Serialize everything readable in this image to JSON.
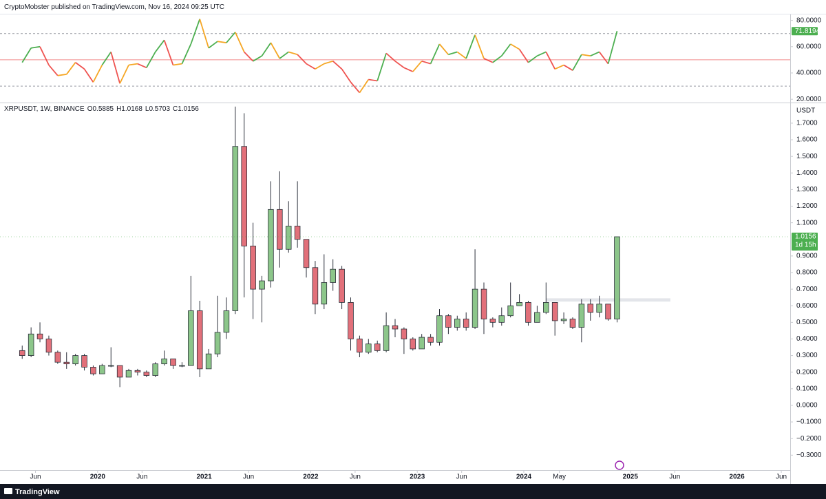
{
  "header": {
    "publisher": "CryptoMobster published on TradingView.com, Nov 16, 2024 09:25 UTC",
    "brand": "TradingView"
  },
  "chart_data": [
    {
      "type": "candlestick",
      "symbol": "XRPUSDT, 1W, BINANCE",
      "ohlc_legend": [
        "O0.5885",
        "H1.0168",
        "L0.5703",
        "C1.0156"
      ],
      "currency": "USDT",
      "countdown": "1d 15h",
      "up_color": "#8cc68a",
      "down_color": "#e2707a",
      "outline_color": "#2a2e39",
      "last_label_color": "#4caf50",
      "x": [
        "2019-04",
        "2019-05",
        "2019-06",
        "2019-07",
        "2019-08",
        "2019-09",
        "2019-10",
        "2019-11",
        "2019-12",
        "2020-01",
        "2020-02",
        "2020-03",
        "2020-04",
        "2020-05",
        "2020-06",
        "2020-07",
        "2020-08",
        "2020-09",
        "2020-10",
        "2020-11",
        "2020-12",
        "2021-01",
        "2021-02",
        "2021-03",
        "2021-04",
        "2021-05",
        "2021-06",
        "2021-07",
        "2021-08",
        "2021-09",
        "2021-10",
        "2021-11",
        "2021-12",
        "2022-01",
        "2022-02",
        "2022-03",
        "2022-04",
        "2022-05",
        "2022-06",
        "2022-07",
        "2022-08",
        "2022-09",
        "2022-10",
        "2022-11",
        "2022-12",
        "2023-01",
        "2023-02",
        "2023-03",
        "2023-04",
        "2023-05",
        "2023-06",
        "2023-07",
        "2023-08",
        "2023-09",
        "2023-10",
        "2023-11",
        "2023-12",
        "2024-01",
        "2024-02",
        "2024-03",
        "2024-04",
        "2024-05",
        "2024-06",
        "2024-07",
        "2024-08",
        "2024-09",
        "2024-10",
        "2024-11"
      ],
      "open": [
        0.33,
        0.3,
        0.43,
        0.4,
        0.32,
        0.26,
        0.25,
        0.3,
        0.23,
        0.19,
        0.24,
        0.24,
        0.17,
        0.21,
        0.2,
        0.18,
        0.25,
        0.28,
        0.24,
        0.24,
        0.57,
        0.22,
        0.31,
        0.44,
        0.57,
        1.56,
        0.96,
        0.7,
        0.75,
        1.18,
        0.94,
        1.08,
        1.0,
        0.83,
        0.61,
        0.74,
        0.82,
        0.62,
        0.4,
        0.32,
        0.37,
        0.33,
        0.48,
        0.46,
        0.4,
        0.34,
        0.41,
        0.38,
        0.54,
        0.47,
        0.52,
        0.47,
        0.7,
        0.52,
        0.5,
        0.54,
        0.6,
        0.62,
        0.5,
        0.56,
        0.62,
        0.51,
        0.52,
        0.47,
        0.61,
        0.56,
        0.61,
        0.52
      ],
      "high": [
        0.36,
        0.47,
        0.5,
        0.42,
        0.33,
        0.32,
        0.31,
        0.31,
        0.24,
        0.25,
        0.35,
        0.24,
        0.22,
        0.22,
        0.21,
        0.26,
        0.33,
        0.28,
        0.26,
        0.78,
        0.63,
        0.34,
        0.66,
        0.65,
        1.8,
        1.76,
        1.1,
        0.78,
        1.35,
        1.41,
        1.23,
        1.35,
        1.0,
        0.87,
        0.91,
        0.88,
        0.84,
        0.65,
        0.42,
        0.4,
        0.39,
        0.56,
        0.52,
        0.47,
        0.41,
        0.43,
        0.43,
        0.58,
        0.55,
        0.54,
        0.56,
        0.94,
        0.74,
        0.53,
        0.59,
        0.74,
        0.67,
        0.63,
        0.6,
        0.74,
        0.62,
        0.56,
        0.53,
        0.64,
        0.64,
        0.66,
        0.61,
        1.0168
      ],
      "low": [
        0.28,
        0.29,
        0.38,
        0.3,
        0.25,
        0.22,
        0.24,
        0.21,
        0.18,
        0.19,
        0.23,
        0.11,
        0.17,
        0.18,
        0.17,
        0.17,
        0.24,
        0.22,
        0.23,
        0.24,
        0.17,
        0.22,
        0.29,
        0.4,
        0.55,
        0.65,
        0.52,
        0.5,
        0.71,
        0.83,
        0.92,
        0.95,
        0.77,
        0.55,
        0.58,
        0.69,
        0.58,
        0.33,
        0.29,
        0.31,
        0.32,
        0.32,
        0.41,
        0.31,
        0.33,
        0.34,
        0.36,
        0.36,
        0.43,
        0.45,
        0.45,
        0.46,
        0.43,
        0.47,
        0.48,
        0.53,
        0.6,
        0.48,
        0.5,
        0.55,
        0.42,
        0.49,
        0.46,
        0.38,
        0.51,
        0.53,
        0.51,
        0.5
      ],
      "close": [
        0.3,
        0.43,
        0.4,
        0.32,
        0.26,
        0.25,
        0.3,
        0.23,
        0.19,
        0.24,
        0.24,
        0.17,
        0.21,
        0.2,
        0.18,
        0.25,
        0.28,
        0.24,
        0.24,
        0.57,
        0.22,
        0.31,
        0.44,
        0.57,
        1.56,
        0.96,
        0.7,
        0.75,
        1.18,
        0.94,
        1.08,
        1.0,
        0.83,
        0.61,
        0.74,
        0.82,
        0.62,
        0.4,
        0.32,
        0.37,
        0.33,
        0.48,
        0.46,
        0.4,
        0.34,
        0.41,
        0.38,
        0.54,
        0.47,
        0.52,
        0.47,
        0.7,
        0.52,
        0.5,
        0.54,
        0.6,
        0.62,
        0.5,
        0.56,
        0.62,
        0.51,
        0.52,
        0.47,
        0.61,
        0.56,
        0.61,
        0.52,
        1.0156
      ],
      "xlim": [
        "2019-02",
        "2026-07"
      ],
      "xticks": [
        {
          "value": "2019-06",
          "label": "Jun"
        },
        {
          "value": "2020-01",
          "label": "2020"
        },
        {
          "value": "2020-06",
          "label": "Jun"
        },
        {
          "value": "2021-01",
          "label": "2021"
        },
        {
          "value": "2021-06",
          "label": "Jun"
        },
        {
          "value": "2022-01",
          "label": "2022"
        },
        {
          "value": "2022-06",
          "label": "Jun"
        },
        {
          "value": "2023-01",
          "label": "2023"
        },
        {
          "value": "2023-06",
          "label": "Jun"
        },
        {
          "value": "2024-01",
          "label": "2024"
        },
        {
          "value": "2024-05",
          "label": "May"
        },
        {
          "value": "2025-01",
          "label": "2025"
        },
        {
          "value": "2025-06",
          "label": "Jun"
        },
        {
          "value": "2026-01",
          "label": "2026"
        },
        {
          "value": "2026-06",
          "label": "Jun"
        }
      ],
      "ylim": [
        -0.39,
        1.82
      ],
      "yticks": [
        {
          "value": 1.7,
          "label": "1.7000"
        },
        {
          "value": 1.6,
          "label": "1.6000"
        },
        {
          "value": 1.5,
          "label": "1.5000"
        },
        {
          "value": 1.4,
          "label": "1.4000"
        },
        {
          "value": 1.3,
          "label": "1.3000"
        },
        {
          "value": 1.2,
          "label": "1.2000"
        },
        {
          "value": 1.1,
          "label": "1.1000"
        },
        {
          "value": 0.9,
          "label": "0.9000"
        },
        {
          "value": 0.8,
          "label": "0.8000"
        },
        {
          "value": 0.7,
          "label": "0.7000"
        },
        {
          "value": 0.6,
          "label": "0.6000"
        },
        {
          "value": 0.5,
          "label": "0.5000"
        },
        {
          "value": 0.4,
          "label": "0.4000"
        },
        {
          "value": 0.3,
          "label": "0.3000"
        },
        {
          "value": 0.2,
          "label": "0.2000"
        },
        {
          "value": 0.1,
          "label": "0.1000"
        },
        {
          "value": 0,
          "label": "0.0000"
        },
        {
          "value": -0.1,
          "label": "−0.1000"
        },
        {
          "value": -0.2,
          "label": "−0.2000"
        },
        {
          "value": -0.3,
          "label": "−0.3000"
        }
      ],
      "grid": false
    },
    {
      "type": "line",
      "x": [
        "2019-04",
        "2019-05",
        "2019-06",
        "2019-07",
        "2019-08",
        "2019-09",
        "2019-10",
        "2019-11",
        "2019-12",
        "2020-01",
        "2020-02",
        "2020-03",
        "2020-04",
        "2020-05",
        "2020-06",
        "2020-07",
        "2020-08",
        "2020-09",
        "2020-10",
        "2020-11",
        "2020-12",
        "2021-01",
        "2021-02",
        "2021-03",
        "2021-04",
        "2021-05",
        "2021-06",
        "2021-07",
        "2021-08",
        "2021-09",
        "2021-10",
        "2021-11",
        "2021-12",
        "2022-01",
        "2022-02",
        "2022-03",
        "2022-04",
        "2022-05",
        "2022-06",
        "2022-07",
        "2022-08",
        "2022-09",
        "2022-10",
        "2022-11",
        "2022-12",
        "2023-01",
        "2023-02",
        "2023-03",
        "2023-04",
        "2023-05",
        "2023-06",
        "2023-07",
        "2023-08",
        "2023-09",
        "2023-10",
        "2023-11",
        "2023-12",
        "2024-01",
        "2024-02",
        "2024-03",
        "2024-04",
        "2024-05",
        "2024-06",
        "2024-07",
        "2024-08",
        "2024-09",
        "2024-10",
        "2024-11"
      ],
      "values": [
        48,
        59,
        60,
        46,
        38,
        39,
        48,
        43,
        33,
        46,
        56,
        32,
        46,
        47,
        44,
        56,
        65,
        46,
        47,
        62,
        81,
        59,
        64,
        63,
        71,
        56,
        49,
        53,
        63,
        51,
        56,
        54,
        47,
        43,
        47,
        49,
        43,
        33,
        25,
        35,
        34,
        55,
        49,
        44,
        41,
        49,
        47,
        62,
        54,
        56,
        51,
        69,
        51,
        48,
        53,
        62,
        58,
        48,
        53,
        56,
        43,
        46,
        42,
        54,
        53,
        56,
        47,
        71.8194
      ],
      "rising_color": "#4caf50",
      "falling_color": "#ef5350",
      "neutral_color": "#f5a623",
      "levels": [
        70,
        50,
        30
      ],
      "level_colors": [
        "#9598a1",
        "#f28b8b",
        "#9598a1"
      ],
      "last_label_color": "#4caf50",
      "xlim": [
        "2019-02",
        "2026-07"
      ],
      "ylim": [
        18,
        84
      ],
      "yticks": [
        {
          "value": 80,
          "label": "80.0000"
        },
        {
          "value": 60,
          "label": "60.0000"
        },
        {
          "value": 40,
          "label": "40.0000"
        },
        {
          "value": 20,
          "label": "20.0000"
        }
      ]
    }
  ]
}
